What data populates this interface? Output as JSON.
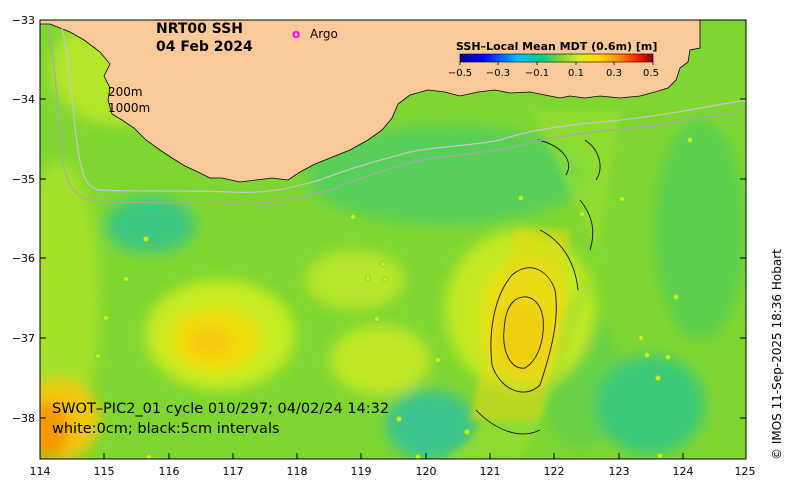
{
  "map": {
    "title_line1": "NRT00 SSH",
    "title_line2": "04 Feb 2024",
    "argo_marker": "o",
    "argo_label": "Argo",
    "isobath_200": "200m",
    "isobath_1000": "1000m",
    "swot_caption_line1": "SWOT–PIC2_01 cycle 010/297; 04/02/24 14:32",
    "swot_caption_line2": "white:0cm; black:5cm intervals",
    "credit": "© IMOS 11-Sep-2025 18:36 Hobart"
  },
  "colorbar": {
    "title": "SSH–Local Mean MDT (0.6m) [m]",
    "ticks": [
      "−0.5",
      "−0.3",
      "−0.1",
      "0.1",
      "0.3",
      "0.5"
    ]
  },
  "axes": {
    "x_ticks": [
      "114",
      "115",
      "116",
      "117",
      "118",
      "119",
      "120",
      "121",
      "122",
      "123",
      "124",
      "125"
    ],
    "y_ticks": [
      "−33",
      "−34",
      "−35",
      "−36",
      "−37",
      "−38"
    ]
  },
  "colors": {
    "land": "#fac99a",
    "ocean_base": "#7fd632",
    "argo": "#ff00ff",
    "contour": "#111111"
  }
}
